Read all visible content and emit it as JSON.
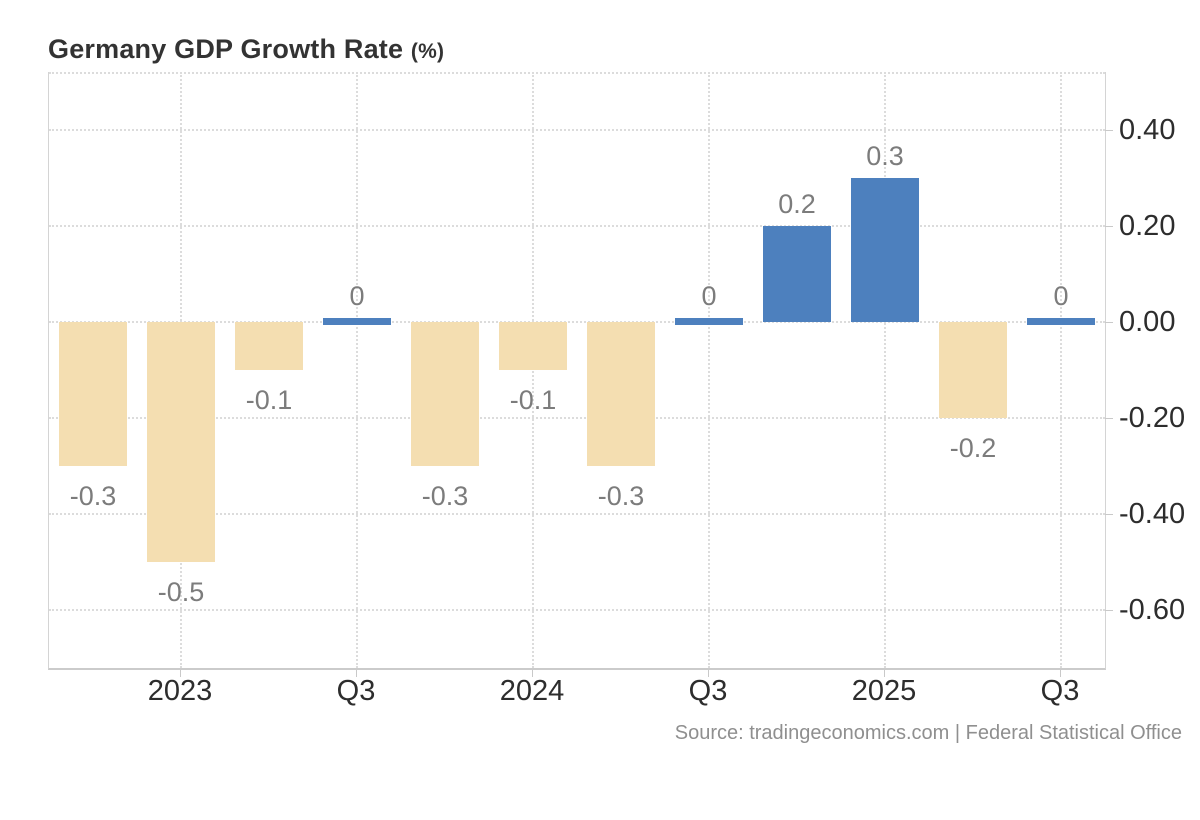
{
  "header": {
    "title": "Germany GDP Growth Rate",
    "unit": "(%)"
  },
  "source": {
    "text": "Source: tradingeconomics.com | Federal Statistical Office"
  },
  "chart_data": {
    "type": "bar",
    "title": "Germany GDP Growth Rate (%)",
    "series": [
      {
        "name": "GDP Growth Rate",
        "values": [
          -0.3,
          -0.5,
          -0.1,
          0,
          -0.3,
          -0.1,
          -0.3,
          0,
          0.2,
          0.3,
          -0.2,
          0
        ]
      }
    ],
    "data_labels": [
      "-0.3",
      "-0.5",
      "-0.1",
      "0",
      "-0.3",
      "-0.1",
      "-0.3",
      "0",
      "0.2",
      "0.3",
      "-0.2",
      "0"
    ],
    "x_axis": {
      "tick_labels": [
        "2023",
        "Q3",
        "2024",
        "Q3",
        "2025",
        "Q3"
      ],
      "tick_bar_indexes": [
        1,
        3,
        5,
        7,
        9,
        11
      ]
    },
    "y_axis": {
      "position": "right",
      "ticks": [
        0.4,
        0.2,
        0.0,
        -0.2,
        -0.4,
        -0.6
      ],
      "tick_labels": [
        "0.40",
        "0.20",
        "0.00",
        "-0.20",
        "-0.40",
        "-0.60"
      ],
      "range": [
        -0.72,
        0.52
      ]
    },
    "grid": true,
    "legend": false,
    "colors": {
      "positive_bar": "#4d80be",
      "negative_bar": "#f4deb1",
      "grid": "#dcdcdc",
      "axis_line": "#cbcbcb",
      "value_label": "#7c7c7c",
      "tick_label": "#2d2d2d",
      "title": "#333333",
      "source": "#8f8f8f"
    }
  }
}
